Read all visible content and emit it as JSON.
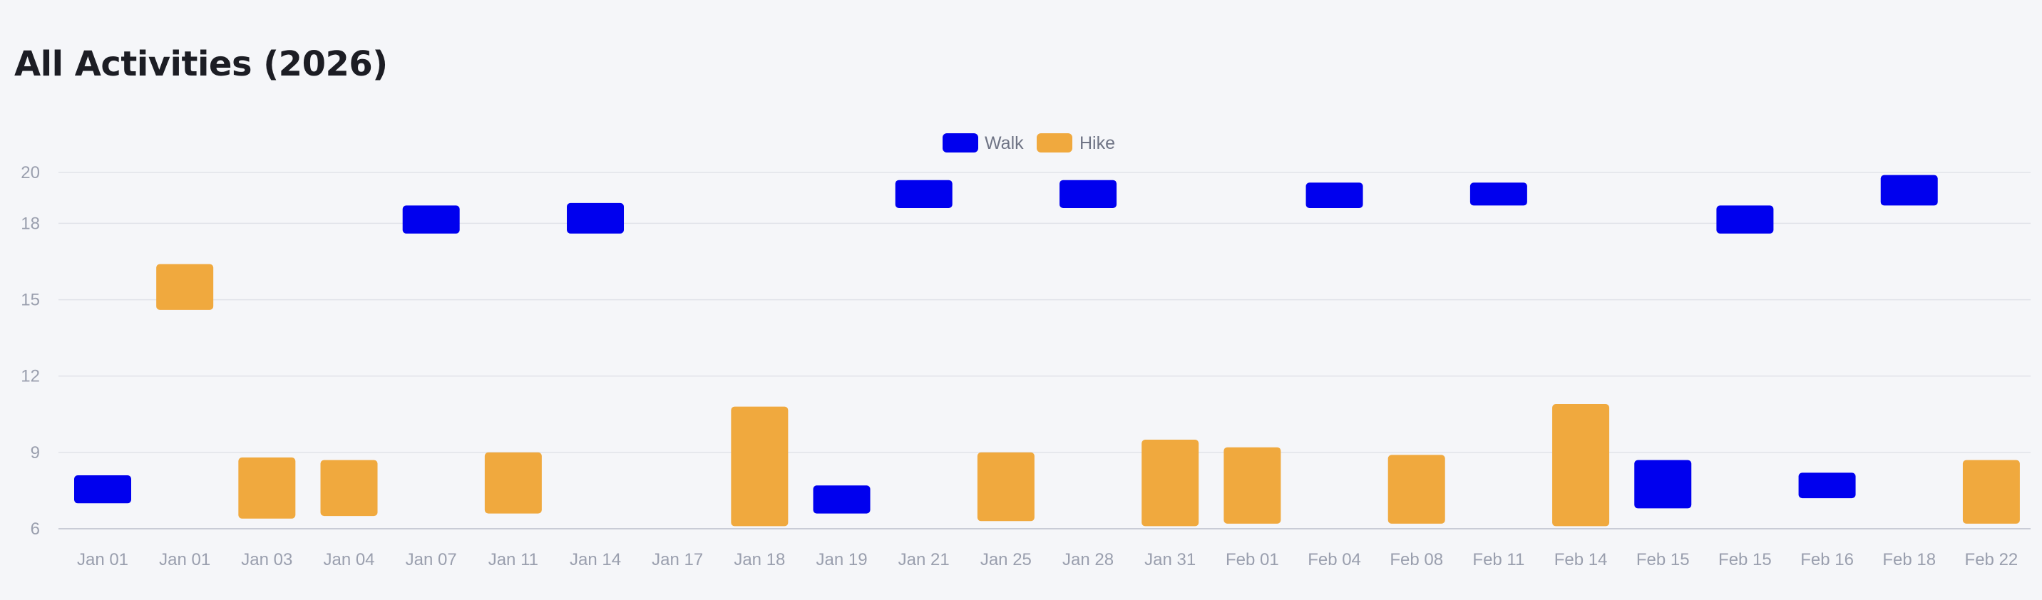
{
  "chart_data": {
    "type": "bar",
    "subtype": "floating-range",
    "title": "All Activities (2026)",
    "xlabel": "",
    "ylabel": "",
    "ylim": [
      6,
      20
    ],
    "y_ticks": [
      6,
      9,
      12,
      15,
      18,
      20
    ],
    "grid": true,
    "legend_position": "top-center",
    "categories": [
      "Jan 01",
      "Jan 01",
      "Jan 03",
      "Jan 04",
      "Jan 07",
      "Jan 11",
      "Jan 14",
      "Jan 17",
      "Jan 18",
      "Jan 19",
      "Jan 21",
      "Jan 25",
      "Jan 28",
      "Jan 31",
      "Feb 01",
      "Feb 04",
      "Feb 08",
      "Feb 11",
      "Feb 14",
      "Feb 15",
      "Feb 15",
      "Feb 16",
      "Feb 18",
      "Feb 22"
    ],
    "series": [
      {
        "name": "Walk",
        "color": "#0000ee",
        "ranges": [
          [
            7.0,
            8.1
          ],
          null,
          null,
          null,
          [
            17.6,
            18.7
          ],
          null,
          [
            17.6,
            18.8
          ],
          null,
          null,
          [
            6.6,
            7.7
          ],
          [
            18.6,
            19.7
          ],
          null,
          [
            18.6,
            19.7
          ],
          null,
          null,
          [
            18.6,
            19.6
          ],
          null,
          [
            18.7,
            19.6
          ],
          null,
          [
            6.8,
            8.7
          ],
          [
            17.6,
            18.7
          ],
          [
            7.2,
            8.2
          ],
          [
            18.7,
            19.9
          ],
          null
        ]
      },
      {
        "name": "Hike",
        "color": "#f0a93e",
        "ranges": [
          null,
          [
            14.6,
            16.4
          ],
          [
            6.4,
            8.8
          ],
          [
            6.5,
            8.7
          ],
          null,
          [
            6.6,
            9.0
          ],
          null,
          null,
          [
            6.1,
            10.8
          ],
          null,
          null,
          [
            6.3,
            9.0
          ],
          null,
          [
            6.1,
            9.5
          ],
          [
            6.2,
            9.2
          ],
          null,
          [
            6.2,
            8.9
          ],
          null,
          [
            6.1,
            10.9
          ],
          null,
          null,
          null,
          null,
          [
            6.2,
            8.7
          ]
        ]
      }
    ]
  }
}
